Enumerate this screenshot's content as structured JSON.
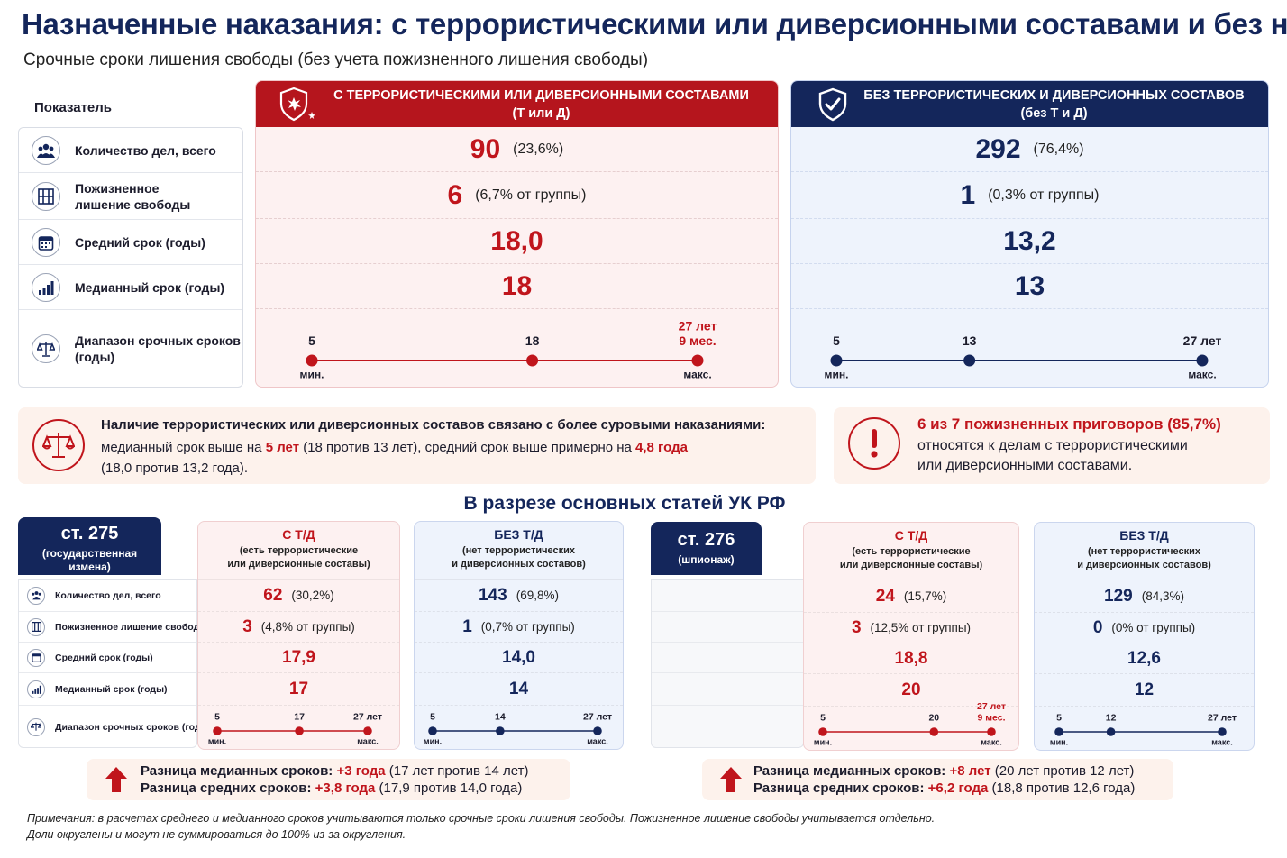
{
  "title": "Назначенные наказания: с террористическими или диверсионными составами и без них",
  "subtitle": "Срочные сроки лишения свободы (без учета пожизненного лишения свободы)",
  "colors": {
    "red": "#c0151c",
    "navy": "#14265b",
    "red_bg": "#fdf1f1",
    "blue_bg": "#eef3fc",
    "callout_bg": "#fdf2ec"
  },
  "indicators": {
    "header": "Показатель",
    "rows": [
      {
        "icon": "people-icon",
        "label": "Количество дел, всего"
      },
      {
        "icon": "prison-bars-icon",
        "label_1": "Пожизненное",
        "label_2": "лишение свободы"
      },
      {
        "icon": "calendar-icon",
        "label": "Средний срок (годы)"
      },
      {
        "icon": "bar-chart-icon",
        "label": "Медианный срок (годы)"
      },
      {
        "icon": "scales-icon",
        "label_1": "Диапазон срочных сроков",
        "label_2": "(годы)"
      }
    ]
  },
  "with_td": {
    "header_1": "С ТЕРРОРИСТИЧЕСКИМИ ИЛИ ДИВЕРСИОННЫМИ СОСТАВАМИ",
    "header_2": "(Т или Д)",
    "cases": "90",
    "cases_pct": "(23,6%)",
    "life": "6",
    "life_pct": "(6,7% от группы)",
    "mean": "18,0",
    "median": "18",
    "range": {
      "min": 5,
      "median": 18,
      "max": 27.75,
      "min_label": "5",
      "mid_label": "18",
      "max_label_1": "27 лет",
      "max_label_2": "9 мес.",
      "min_caption": "мин.",
      "max_caption": "макс."
    }
  },
  "without_td": {
    "header_1": "БЕЗ ТЕРРОРИСТИЧЕСКИХ И ДИВЕРСИОННЫХ СОСТАВОВ",
    "header_2": "(без Т и Д)",
    "cases": "292",
    "cases_pct": "(76,4%)",
    "life": "1",
    "life_pct": "(0,3% от группы)",
    "mean": "13,2",
    "median": "13",
    "range": {
      "min": 5,
      "median": 13,
      "max": 27,
      "min_label": "5",
      "mid_label": "13",
      "max_label_1": "27 лет",
      "min_caption": "мин.",
      "max_caption": "макс."
    }
  },
  "callout_left": {
    "line1": "Наличие террористических или диверсионных составов связано с более суровыми наказаниями:",
    "line2_a": "медианный срок выше на ",
    "line2_b": "5 лет",
    "line2_c": " (18 против 13 лет), средний срок выше примерно на ",
    "line2_d": "4,8 года",
    "line3": "(18,0 против 13,2 года)."
  },
  "callout_right": {
    "line1": "6 из 7 пожизненных приговоров (85,7%)",
    "line2": "относятся к делам с террористическими",
    "line3": "или диверсионными составами."
  },
  "section_title": "В разрезе основных статей УК РФ",
  "small_labels": [
    "Количество дел, всего",
    "Пожизненное лишение свободы",
    "Средний срок (годы)",
    "Медианный срок (годы)",
    "Диапазон срочных сроков (годы)"
  ],
  "art275": {
    "tag_1": "ст. 275",
    "tag_2_a": "(государственная",
    "tag_2_b": "измена)",
    "td": {
      "h1": "С Т/Д",
      "h2_a": "(есть террористические",
      "h2_b": "или диверсионные составы)",
      "cases": "62",
      "cases_pct": "(30,2%)",
      "life": "3",
      "life_pct": "(4,8% от группы)",
      "mean": "17,9",
      "median": "17",
      "range": {
        "min": 5,
        "median": 17,
        "max": 27,
        "min_label": "5",
        "mid_label": "17",
        "max_label_1": "27 лет",
        "min_caption": "мин.",
        "max_caption": "макс."
      }
    },
    "notd": {
      "h1": "БЕЗ Т/Д",
      "h2_a": "(нет террористических",
      "h2_b": "и диверсионных составов)",
      "cases": "143",
      "cases_pct": "(69,8%)",
      "life": "1",
      "life_pct": "(0,7% от группы)",
      "mean": "14,0",
      "median": "14",
      "range": {
        "min": 5,
        "median": 14,
        "max": 27,
        "min_label": "5",
        "mid_label": "14",
        "max_label_1": "27 лет",
        "min_caption": "мин.",
        "max_caption": "макс."
      }
    },
    "diff_1_a": "Разница медианных сроков: ",
    "diff_1_b": "+3 года",
    "diff_1_c": " (17 лет против 14 лет)",
    "diff_2_a": "Разница средних сроков: ",
    "diff_2_b": "+3,8 года",
    "diff_2_c": " (17,9 против 14,0 года)"
  },
  "art276": {
    "tag_1": "ст. 276",
    "tag_2_a": "(шпионаж)",
    "td": {
      "h1": "С Т/Д",
      "h2_a": "(есть террористические",
      "h2_b": "или диверсионные составы)",
      "cases": "24",
      "cases_pct": "(15,7%)",
      "life": "3",
      "life_pct": "(12,5% от группы)",
      "mean": "18,8",
      "median": "20",
      "range": {
        "min": 5,
        "median": 20,
        "max": 27.75,
        "min_label": "5",
        "mid_label": "20",
        "max_label_1": "27 лет",
        "max_label_2": "9 мес.",
        "min_caption": "мин.",
        "max_caption": "макс."
      }
    },
    "notd": {
      "h1": "БЕЗ Т/Д",
      "h2_a": "(нет террористических",
      "h2_b": "и диверсионных составов)",
      "cases": "129",
      "cases_pct": "(84,3%)",
      "life": "0",
      "life_pct": "(0% от группы)",
      "mean": "12,6",
      "median": "12",
      "range": {
        "min": 5,
        "median": 12,
        "max": 27,
        "min_label": "5",
        "mid_label": "12",
        "max_label_1": "27 лет",
        "min_caption": "мин.",
        "max_caption": "макс."
      }
    },
    "diff_1_a": "Разница медианных сроков: ",
    "diff_1_b": "+8 лет",
    "diff_1_c": " (20 лет против 12 лет)",
    "diff_2_a": "Разница средних сроков: ",
    "diff_2_b": "+6,2 года",
    "diff_2_c": " (18,8 против 12,6 года)"
  },
  "notes": {
    "line1": "Примечания: в расчетах среднего и медианного сроков учитываются только срочные сроки лишения свободы. Пожизненное лишение свободы учитывается отдельно.",
    "line2": "Доли округлены и могут не суммироваться до 100% из-за округления."
  }
}
